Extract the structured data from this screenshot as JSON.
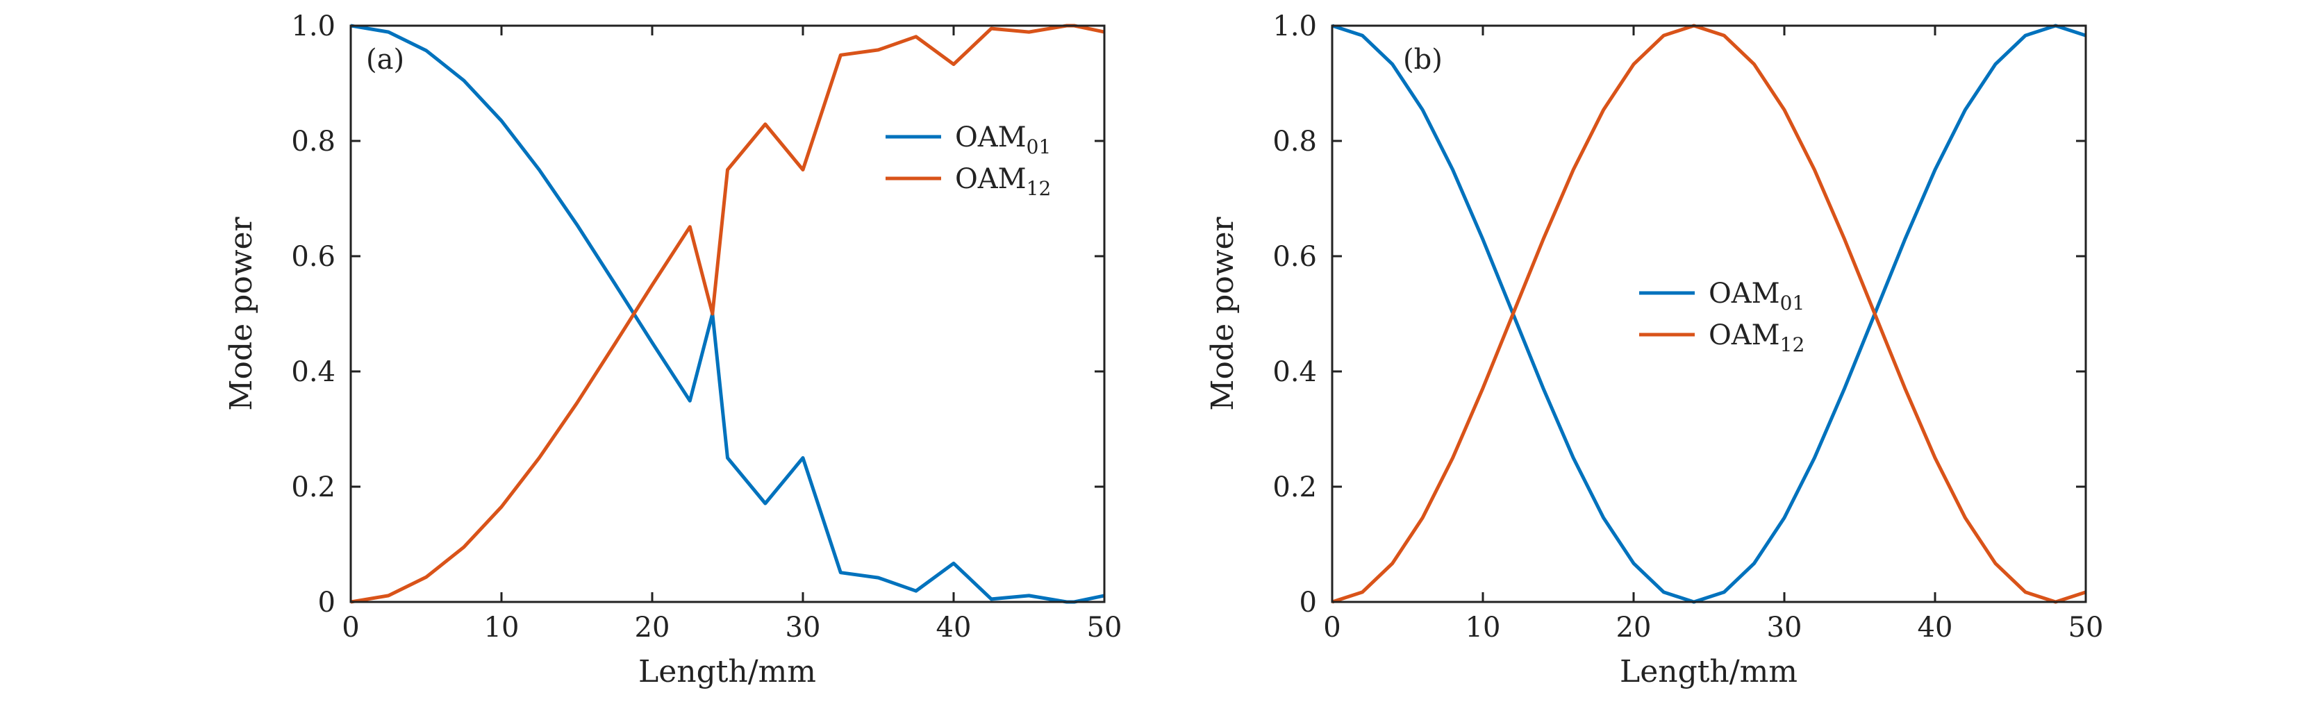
{
  "chart_data": [
    {
      "type": "line",
      "panel_label": "(a)",
      "xlabel": "Length/mm",
      "ylabel": "Mode power",
      "xlim": [
        0,
        50
      ],
      "ylim": [
        0,
        1
      ],
      "xticks": [
        0,
        10,
        20,
        30,
        40,
        50
      ],
      "xtick_labels": [
        "0",
        "10",
        "20",
        "30",
        "40",
        "50"
      ],
      "yticks": [
        0,
        0.2,
        0.4,
        0.6,
        0.8,
        1.0
      ],
      "ytick_labels": [
        "0",
        "0.2",
        "0.4",
        "0.6",
        "0.8",
        "1.0"
      ],
      "grid": false,
      "legend_position": "upper-right",
      "series": [
        {
          "name": "OAM01",
          "label_base": "OAM",
          "label_sub": "01",
          "color": "#0072BD",
          "x": [
            0,
            2.5,
            5,
            7.5,
            10,
            12.5,
            15,
            17.5,
            20,
            22.5,
            24,
            25,
            27.5,
            30,
            32.5,
            35,
            37.5,
            40,
            42.5,
            45,
            47.5,
            48,
            50
          ],
          "y": [
            1.0,
            0.989,
            0.957,
            0.905,
            0.835,
            0.75,
            0.655,
            0.553,
            0.45,
            0.349,
            0.5,
            0.25,
            0.171,
            0.25,
            0.051,
            0.042,
            0.019,
            0.067,
            0.005,
            0.011,
            0.0,
            0.0,
            0.011
          ]
        },
        {
          "name": "OAM12",
          "label_base": "OAM",
          "label_sub": "12",
          "color": "#D95319",
          "x": [
            0,
            2.5,
            5,
            7.5,
            10,
            12.5,
            15,
            17.5,
            20,
            22.5,
            24,
            25,
            27.5,
            30,
            32.5,
            35,
            37.5,
            40,
            42.5,
            45,
            47.5,
            48,
            50
          ],
          "y": [
            0.0,
            0.011,
            0.043,
            0.095,
            0.165,
            0.25,
            0.345,
            0.447,
            0.55,
            0.651,
            0.5,
            0.75,
            0.829,
            0.75,
            0.949,
            0.958,
            0.981,
            0.933,
            0.995,
            0.989,
            1.0,
            1.0,
            0.989
          ]
        }
      ]
    },
    {
      "type": "line",
      "panel_label": "(b)",
      "xlabel": "Length/mm",
      "ylabel": "Mode power",
      "xlim": [
        0,
        50
      ],
      "ylim": [
        0,
        1
      ],
      "xticks": [
        0,
        10,
        20,
        30,
        40,
        50
      ],
      "xtick_labels": [
        "0",
        "10",
        "20",
        "30",
        "40",
        "50"
      ],
      "yticks": [
        0,
        0.2,
        0.4,
        0.6,
        0.8,
        1.0
      ],
      "ytick_labels": [
        "0",
        "0.2",
        "0.4",
        "0.6",
        "0.8",
        "1.0"
      ],
      "grid": false,
      "legend_position": "center",
      "series": [
        {
          "name": "OAM01",
          "label_base": "OAM",
          "label_sub": "01",
          "color": "#0072BD",
          "x": [
            0,
            2,
            4,
            6,
            8,
            10,
            12,
            14,
            16,
            18,
            20,
            22,
            24,
            26,
            28,
            30,
            32,
            34,
            36,
            38,
            40,
            42,
            44,
            46,
            48,
            50
          ],
          "y": [
            1.0,
            0.983,
            0.933,
            0.854,
            0.75,
            0.629,
            0.5,
            0.371,
            0.25,
            0.146,
            0.067,
            0.017,
            0.0,
            0.017,
            0.067,
            0.146,
            0.25,
            0.371,
            0.5,
            0.629,
            0.75,
            0.854,
            0.933,
            0.983,
            1.0,
            0.983
          ]
        },
        {
          "name": "OAM12",
          "label_base": "OAM",
          "label_sub": "12",
          "color": "#D95319",
          "x": [
            0,
            2,
            4,
            6,
            8,
            10,
            12,
            14,
            16,
            18,
            20,
            22,
            24,
            26,
            28,
            30,
            32,
            34,
            36,
            38,
            40,
            42,
            44,
            46,
            48,
            50
          ],
          "y": [
            0.0,
            0.017,
            0.067,
            0.146,
            0.25,
            0.371,
            0.5,
            0.629,
            0.75,
            0.854,
            0.933,
            0.983,
            1.0,
            0.983,
            0.933,
            0.854,
            0.75,
            0.629,
            0.5,
            0.371,
            0.25,
            0.146,
            0.067,
            0.017,
            0.0,
            0.017
          ]
        }
      ]
    }
  ]
}
